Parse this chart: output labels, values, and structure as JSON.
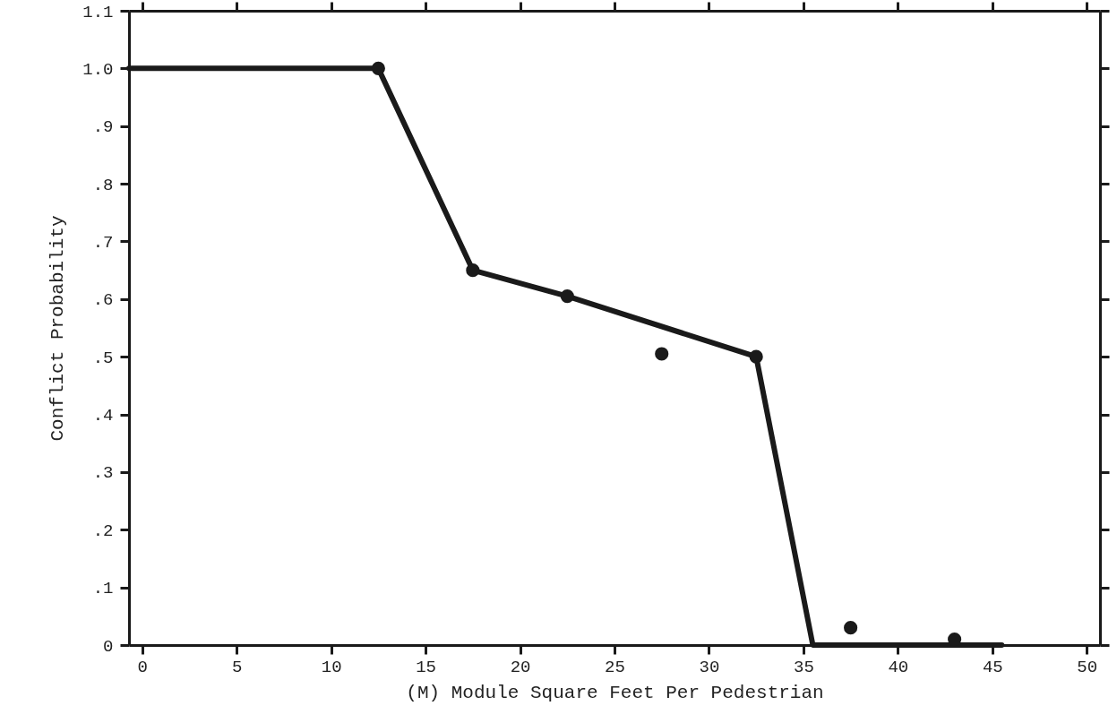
{
  "chart_data": {
    "type": "line",
    "xlabel": "(M) Module Square Feet Per Pedestrian",
    "ylabel": "Conflict Probability",
    "xlim": [
      -0.7,
      50.7
    ],
    "ylim": [
      0,
      1.1
    ],
    "xticks": [
      0,
      5,
      10,
      15,
      20,
      25,
      30,
      35,
      40,
      45,
      50
    ],
    "yticks": [
      0,
      {
        "value": 0.1,
        "label": ".1"
      },
      {
        "value": 0.2,
        "label": ".2"
      },
      {
        "value": 0.3,
        "label": ".3"
      },
      {
        "value": 0.4,
        "label": ".4"
      },
      {
        "value": 0.5,
        "label": ".5"
      },
      {
        "value": 0.6,
        "label": ".6"
      },
      {
        "value": 0.7,
        "label": ".7"
      },
      {
        "value": 0.8,
        "label": ".8"
      },
      {
        "value": 0.9,
        "label": ".9"
      },
      {
        "value": 1.0,
        "label": "1.0"
      },
      {
        "value": 1.1,
        "label": "1.1"
      }
    ],
    "grid": false,
    "series": [
      {
        "color": "#1a1a1a",
        "marker": "none",
        "line_style": "solid",
        "x": [
          -0.7,
          12.5,
          17.5,
          22.5,
          32.5,
          35.5,
          45.5
        ],
        "values": [
          1.0,
          1.0,
          0.65,
          0.605,
          0.5,
          0.0,
          0.0
        ]
      },
      {
        "type": "scatter",
        "color": "#1a1a1a",
        "marker": "circle",
        "x": [
          12.5,
          17.5,
          22.5,
          27.5,
          32.5,
          37.5,
          43.0
        ],
        "values": [
          1.0,
          0.65,
          0.605,
          0.505,
          0.5,
          0.03,
          0.01
        ]
      }
    ]
  }
}
